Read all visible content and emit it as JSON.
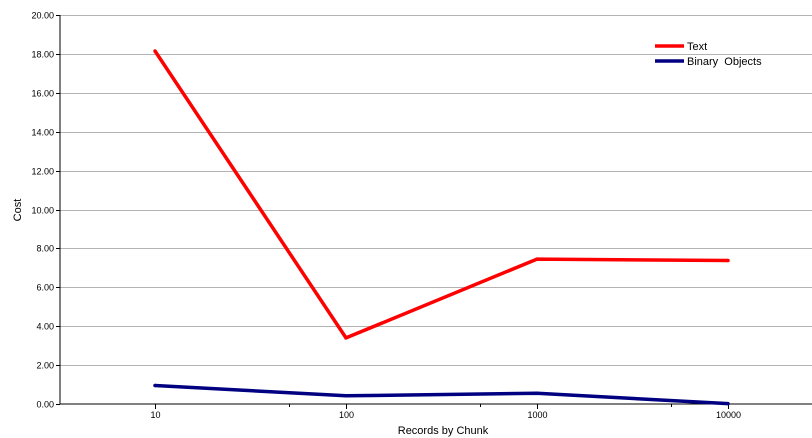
{
  "chart_data": {
    "type": "line",
    "title": "",
    "xlabel": "Records by Chunk",
    "ylabel": "Cost",
    "x_scale": "log",
    "x": [
      10,
      100,
      1000,
      10000
    ],
    "x_tick_labels": [
      "10",
      "100",
      "1000",
      "10000"
    ],
    "ylim": [
      0,
      20
    ],
    "y_ticks": [
      0,
      2,
      4,
      6,
      8,
      10,
      12,
      14,
      16,
      18,
      20
    ],
    "y_tick_labels": [
      "0.00",
      "2.00",
      "4.00",
      "6.00",
      "8.00",
      "10.00",
      "12.00",
      "14.00",
      "16.00",
      "18.00",
      "20.00"
    ],
    "grid": {
      "horizontal": true,
      "vertical": false
    },
    "legend": "top-right",
    "series": [
      {
        "name": "Text",
        "color": "#ff0000",
        "values": [
          18.15,
          3.4,
          7.45,
          7.38
        ]
      },
      {
        "name": "Binary  Objects",
        "color": "#000080",
        "values": [
          0.95,
          0.42,
          0.55,
          0.02
        ]
      }
    ]
  }
}
